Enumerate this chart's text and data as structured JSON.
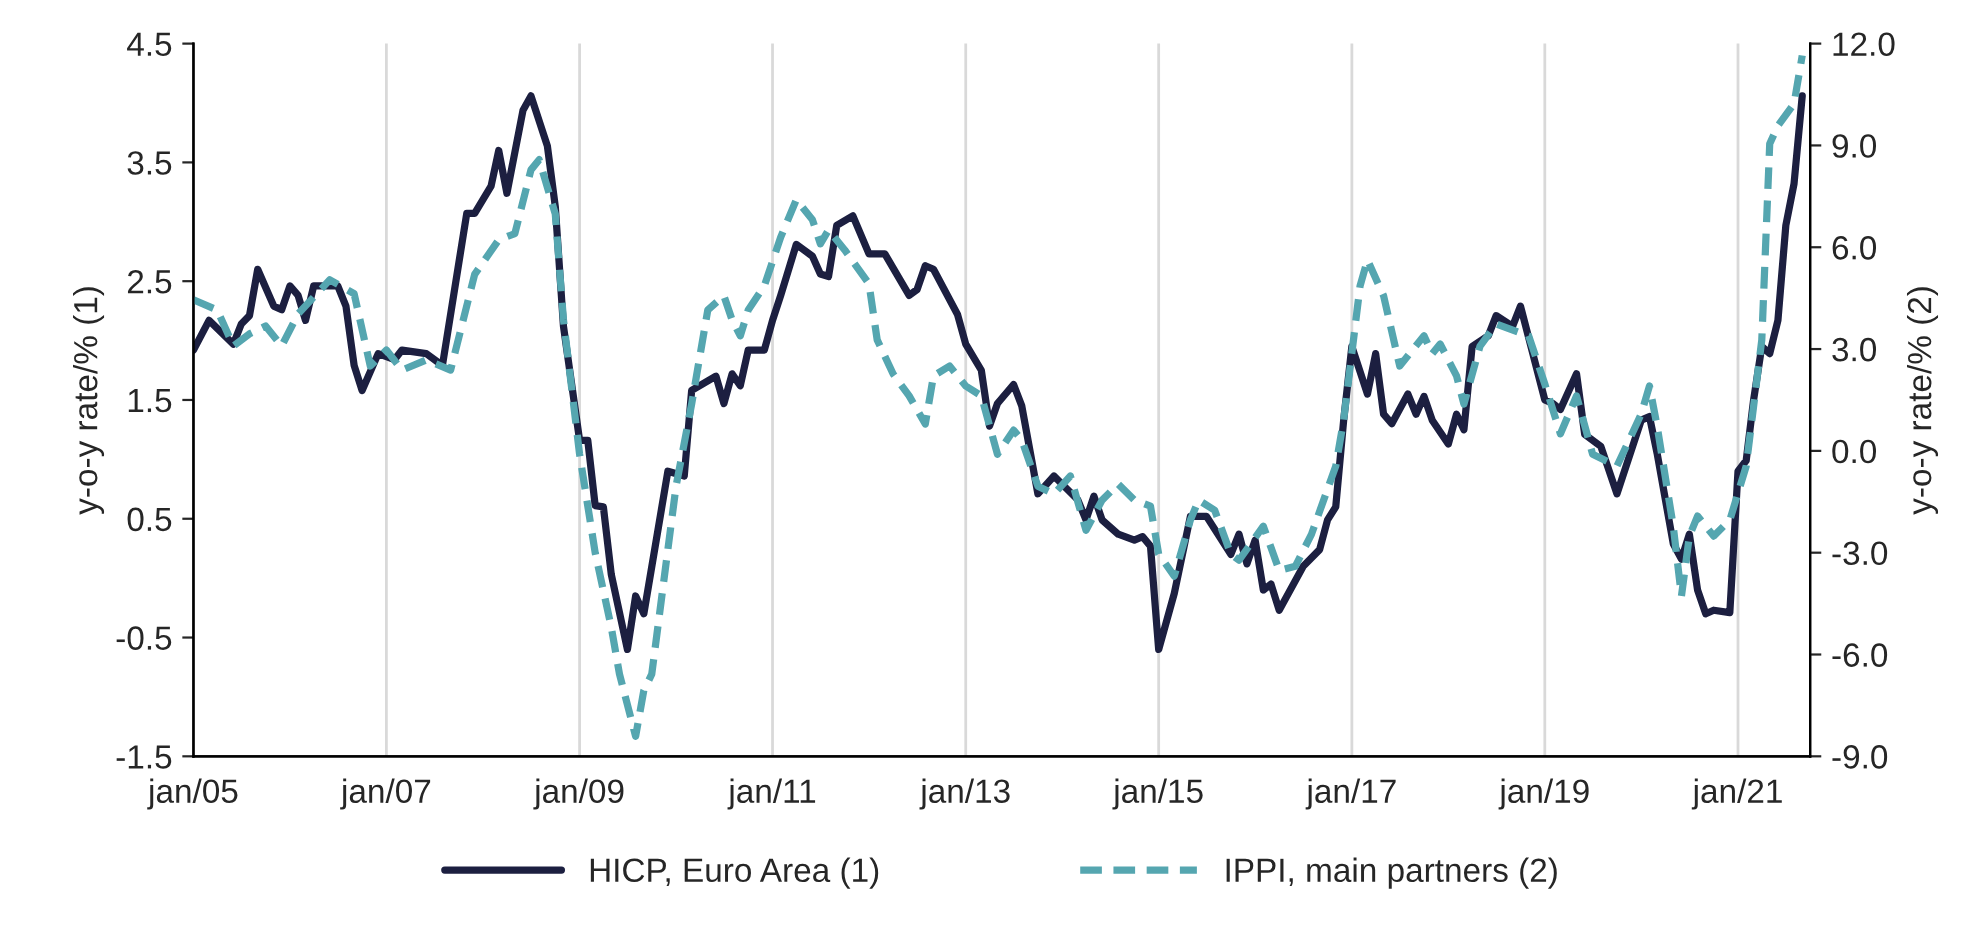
{
  "chart_data": {
    "type": "line",
    "ylabel": "y-o-y rate/% (1)",
    "y2label": "y-o-y rate/% (2)",
    "xlim": [
      "2005-01",
      "2021-10"
    ],
    "xticks": [
      {
        "value": "2005-01",
        "label": "jan/05"
      },
      {
        "value": "2007-01",
        "label": "jan/07"
      },
      {
        "value": "2009-01",
        "label": "jan/09"
      },
      {
        "value": "2011-01",
        "label": "jan/11"
      },
      {
        "value": "2013-01",
        "label": "jan/13"
      },
      {
        "value": "2015-01",
        "label": "jan/15"
      },
      {
        "value": "2017-01",
        "label": "jan/17"
      },
      {
        "value": "2019-01",
        "label": "jan/19"
      },
      {
        "value": "2021-01",
        "label": "jan/21"
      }
    ],
    "ylim": [
      -1.5,
      4.5
    ],
    "yticks": [
      -1.5,
      -0.5,
      0.5,
      1.5,
      2.5,
      3.5,
      4.5
    ],
    "y2lim": [
      -9,
      12
    ],
    "y2ticks": [
      {
        "value": -9,
        "label": "-9.0"
      },
      {
        "value": -6,
        "label": "-6.0"
      },
      {
        "value": -3,
        "label": "-3.0"
      },
      {
        "value": 0,
        "label": "0.0"
      },
      {
        "value": 3,
        "label": "3.0"
      },
      {
        "value": 6,
        "label": "6.0"
      },
      {
        "value": 9,
        "label": "9.0"
      },
      {
        "value": 12,
        "label": "12.0"
      }
    ],
    "grid": "x",
    "legend": "bottom",
    "series": [
      {
        "name": "HICP, Euro Area (1)",
        "color": "#1c1f40",
        "line_style": "solid",
        "x": [
          "2005-01",
          "2005-03",
          "2005-06",
          "2005-07",
          "2005-08",
          "2005-09",
          "2005-11",
          "2005-12",
          "2006-01",
          "2006-02",
          "2006-03",
          "2006-04",
          "2006-07",
          "2006-08",
          "2006-09",
          "2006-10",
          "2006-12",
          "2007-02",
          "2007-03",
          "2007-06",
          "2007-08",
          "2007-11",
          "2007-12",
          "2008-02",
          "2008-03",
          "2008-04",
          "2008-06",
          "2008-07",
          "2008-09",
          "2008-10",
          "2008-11",
          "2009-01",
          "2009-02",
          "2009-03",
          "2009-04",
          "2009-05",
          "2009-07",
          "2009-08",
          "2009-09",
          "2009-12",
          "2010-02",
          "2010-03",
          "2010-06",
          "2010-07",
          "2010-08",
          "2010-09",
          "2010-10",
          "2010-12",
          "2011-01",
          "2011-02",
          "2011-04",
          "2011-06",
          "2011-07",
          "2011-08",
          "2011-09",
          "2011-11",
          "2012-01",
          "2012-03",
          "2012-06",
          "2012-07",
          "2012-08",
          "2012-09",
          "2012-12",
          "2013-01",
          "2013-03",
          "2013-04",
          "2013-05",
          "2013-07",
          "2013-08",
          "2013-10",
          "2013-12",
          "2014-01",
          "2014-03",
          "2014-04",
          "2014-05",
          "2014-06",
          "2014-08",
          "2014-10",
          "2014-11",
          "2014-12",
          "2015-01",
          "2015-03",
          "2015-05",
          "2015-07",
          "2015-10",
          "2015-11",
          "2015-12",
          "2016-01",
          "2016-02",
          "2016-03",
          "2016-04",
          "2016-07",
          "2016-09",
          "2016-10",
          "2016-11",
          "2016-12",
          "2017-01",
          "2017-03",
          "2017-04",
          "2017-05",
          "2017-06",
          "2017-08",
          "2017-09",
          "2017-10",
          "2017-11",
          "2018-01",
          "2018-02",
          "2018-03",
          "2018-04",
          "2018-06",
          "2018-07",
          "2018-09",
          "2018-10",
          "2019-01",
          "2019-02",
          "2019-03",
          "2019-05",
          "2019-06",
          "2019-08",
          "2019-10",
          "2020-01",
          "2020-02",
          "2020-03",
          "2020-05",
          "2020-06",
          "2020-07",
          "2020-08",
          "2020-09",
          "2020-10",
          "2020-12",
          "2021-01",
          "2021-02",
          "2021-03",
          "2021-04",
          "2021-05",
          "2021-06",
          "2021-07",
          "2021-08",
          "2021-09"
        ],
        "values": [
          1.92,
          2.17,
          1.97,
          2.14,
          2.21,
          2.6,
          2.29,
          2.26,
          2.46,
          2.38,
          2.17,
          2.46,
          2.46,
          2.29,
          1.79,
          1.58,
          1.89,
          1.84,
          1.92,
          1.89,
          1.79,
          3.07,
          3.07,
          3.3,
          3.6,
          3.24,
          3.94,
          4.06,
          3.64,
          3.13,
          2.12,
          1.16,
          1.16,
          0.61,
          0.6,
          0.03,
          -0.6,
          -0.15,
          -0.3,
          0.9,
          0.86,
          1.58,
          1.7,
          1.47,
          1.72,
          1.62,
          1.92,
          1.92,
          2.17,
          2.38,
          2.81,
          2.71,
          2.56,
          2.54,
          2.97,
          3.05,
          2.73,
          2.73,
          2.38,
          2.43,
          2.63,
          2.6,
          2.22,
          1.97,
          1.75,
          1.28,
          1.47,
          1.63,
          1.45,
          0.71,
          0.86,
          0.79,
          0.66,
          0.49,
          0.69,
          0.49,
          0.37,
          0.32,
          0.35,
          0.27,
          -0.6,
          -0.13,
          0.52,
          0.52,
          0.2,
          0.37,
          0.12,
          0.32,
          -0.1,
          -0.05,
          -0.27,
          0.1,
          0.24,
          0.49,
          0.6,
          1.33,
          1.95,
          1.55,
          1.89,
          1.38,
          1.3,
          1.55,
          1.38,
          1.53,
          1.33,
          1.13,
          1.38,
          1.25,
          1.95,
          2.04,
          2.21,
          2.12,
          2.29,
          1.5,
          1.47,
          1.42,
          1.72,
          1.21,
          1.11,
          0.71,
          1.33,
          1.36,
          1.05,
          0.29,
          0.16,
          0.37,
          -0.1,
          -0.3,
          -0.27,
          -0.29,
          0.9,
          0.99,
          1.5,
          1.95,
          1.89,
          2.17,
          2.97,
          3.32,
          4.06
        ]
      },
      {
        "name": "IPPI, main partners (2)",
        "color": "#55a6b0",
        "line_style": "dashed",
        "axis": "y2",
        "x": [
          "2005-01",
          "2005-04",
          "2005-06",
          "2005-08",
          "2005-10",
          "2005-12",
          "2006-02",
          "2006-06",
          "2006-09",
          "2006-11",
          "2007-01",
          "2007-03",
          "2007-06",
          "2007-09",
          "2007-12",
          "2008-03",
          "2008-05",
          "2008-07",
          "2008-08",
          "2008-10",
          "2008-11",
          "2009-01",
          "2009-03",
          "2009-05",
          "2009-06",
          "2009-08",
          "2009-09",
          "2009-10",
          "2010-01",
          "2010-03",
          "2010-05",
          "2010-07",
          "2010-08",
          "2010-09",
          "2010-10",
          "2010-12",
          "2011-02",
          "2011-04",
          "2011-06",
          "2011-07",
          "2011-08",
          "2011-10",
          "2012-01",
          "2012-02",
          "2012-04",
          "2012-06",
          "2012-08",
          "2012-09",
          "2012-11",
          "2013-01",
          "2013-03",
          "2013-05",
          "2013-07",
          "2013-08",
          "2013-10",
          "2013-12",
          "2014-02",
          "2014-04",
          "2014-06",
          "2014-08",
          "2014-10",
          "2014-12",
          "2015-01",
          "2015-03",
          "2015-05",
          "2015-06",
          "2015-08",
          "2015-10",
          "2015-11",
          "2016-02",
          "2016-04",
          "2016-06",
          "2016-08",
          "2016-11",
          "2016-12",
          "2017-02",
          "2017-03",
          "2017-05",
          "2017-07",
          "2017-10",
          "2017-11",
          "2017-12",
          "2018-02",
          "2018-03",
          "2018-05",
          "2018-07",
          "2018-11",
          "2019-01",
          "2019-03",
          "2019-05",
          "2019-07",
          "2019-10",
          "2020-01",
          "2020-02",
          "2020-03",
          "2020-05",
          "2020-06",
          "2020-07",
          "2020-08",
          "2020-10",
          "2020-12",
          "2021-02",
          "2021-04",
          "2021-05",
          "2021-06",
          "2021-08",
          "2021-09"
        ],
        "values": [
          4.45,
          4.15,
          3.09,
          3.45,
          3.68,
          3.09,
          4.04,
          5.04,
          4.63,
          2.5,
          2.97,
          2.38,
          2.68,
          2.38,
          5.2,
          6.22,
          6.4,
          8.28,
          8.58,
          6.98,
          3.86,
          -0.1,
          -3.0,
          -5.2,
          -6.58,
          -8.41,
          -7.06,
          -6.58,
          -1.04,
          1.38,
          4.15,
          4.57,
          3.86,
          3.39,
          4.15,
          4.86,
          6.3,
          7.4,
          6.81,
          6.1,
          6.51,
          5.92,
          4.92,
          3.27,
          2.27,
          1.62,
          0.79,
          2.21,
          2.5,
          1.91,
          1.62,
          -0.1,
          0.61,
          0.32,
          -1.04,
          -1.27,
          -0.74,
          -2.34,
          -1.45,
          -0.98,
          -1.45,
          -1.63,
          -3.04,
          -3.69,
          -2.04,
          -1.45,
          -1.75,
          -3.04,
          -3.22,
          -2.22,
          -3.52,
          -3.4,
          -2.46,
          -0.45,
          0.91,
          4.86,
          5.63,
          4.57,
          2.5,
          3.39,
          2.86,
          3.15,
          2.21,
          1.38,
          3.09,
          3.74,
          3.39,
          1.97,
          0.5,
          1.62,
          -0.1,
          -0.45,
          1.09,
          1.91,
          0.73,
          -2.22,
          -4.28,
          -2.51,
          -1.92,
          -2.51,
          -2.04,
          -0.45,
          3.27,
          9.05,
          9.58,
          10.23,
          11.65
        ]
      }
    ]
  }
}
